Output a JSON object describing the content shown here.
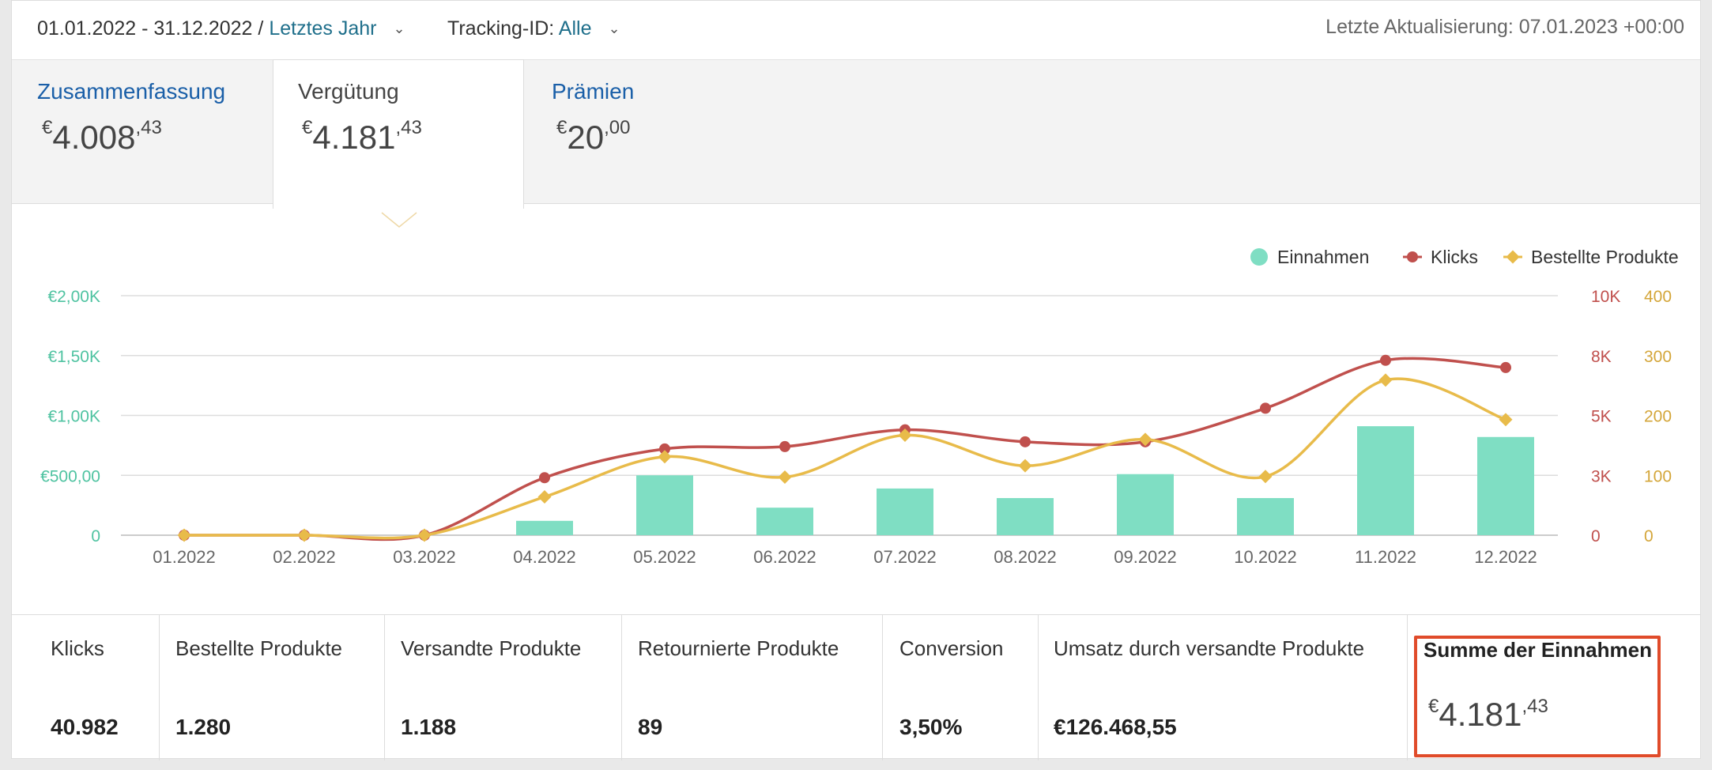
{
  "header": {
    "date_range": "01.01.2022 - 31.12.2022 /",
    "period_link": "Letztes Jahr",
    "tracking_label": "Tracking-ID:",
    "tracking_value": "Alle",
    "last_update": "Letzte Aktualisierung: 07.01.2023 +00:00"
  },
  "tabs": [
    {
      "label": "Zusammenfassung",
      "currency": "€",
      "amount": "4.008",
      "cents": ",43"
    },
    {
      "label": "Vergütung",
      "currency": "€",
      "amount": "4.181",
      "cents": ",43"
    },
    {
      "label": "Prämien",
      "currency": "€",
      "amount": "20",
      "cents": ",00"
    }
  ],
  "chart_data": {
    "type": "bar",
    "categories": [
      "01.2022",
      "02.2022",
      "03.2022",
      "04.2022",
      "05.2022",
      "06.2022",
      "07.2022",
      "08.2022",
      "09.2022",
      "10.2022",
      "11.2022",
      "12.2022"
    ],
    "series": [
      {
        "name": "Einnahmen",
        "type": "bar",
        "axis": "left",
        "color": "#7fdec3",
        "values": [
          0,
          0,
          0,
          120,
          500,
          230,
          390,
          310,
          510,
          310,
          910,
          820
        ]
      },
      {
        "name": "Klicks",
        "type": "line",
        "axis": "right1",
        "color": "#c0504d",
        "values": [
          0,
          0,
          0,
          2400,
          3600,
          3700,
          4400,
          3900,
          3900,
          5300,
          7300,
          7000
        ]
      },
      {
        "name": "Bestellte Produkte",
        "type": "line",
        "axis": "right2",
        "color": "#e8bb4a",
        "values": [
          0,
          0,
          0,
          64,
          131,
          97,
          167,
          116,
          160,
          98,
          259,
          193
        ]
      }
    ],
    "left_axis": {
      "ticks": [
        "0",
        "€500,00",
        "€1,00K",
        "€1,50K",
        "€2,00K"
      ],
      "ylim": [
        0,
        2000
      ],
      "color": "#4fc3a1"
    },
    "right1_axis": {
      "ticks": [
        "0",
        "3K",
        "5K",
        "8K",
        "10K"
      ],
      "ylim": [
        0,
        10000
      ],
      "color": "#c0504d"
    },
    "right2_axis": {
      "ticks": [
        "0",
        "100",
        "200",
        "300",
        "400"
      ],
      "ylim": [
        0,
        400
      ],
      "color": "#d4a63a"
    },
    "legend": "top-right",
    "grid": true
  },
  "stats": [
    {
      "label": "Klicks",
      "value": "40.982"
    },
    {
      "label": "Bestellte Produkte",
      "value": "1.280"
    },
    {
      "label": "Versandte Produkte",
      "value": "1.188"
    },
    {
      "label": "Retournierte Produkte",
      "value": "89"
    },
    {
      "label": "Conversion",
      "value": "3,50%"
    },
    {
      "label": "Umsatz durch versandte Produkte",
      "value": "€126.468,55"
    }
  ],
  "total": {
    "label": "Summe der Einnahmen",
    "currency": "€",
    "amount": "4.181",
    "cents": ",43"
  }
}
